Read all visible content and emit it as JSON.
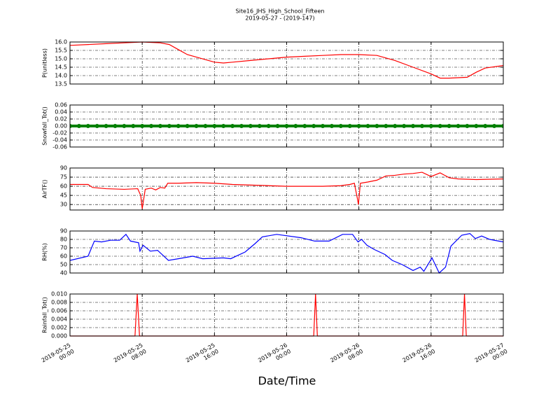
{
  "chart_data": [
    {
      "type": "line",
      "title": "Site16_JHS_High_School_Fifteen",
      "subtitle": "2019-05-27 - (2019-147)",
      "ylabel": "P(unitless)",
      "color": "#ff0000",
      "grid": true,
      "xlim": [
        "2019-05-25 00:00",
        "2019-05-27 00:00"
      ],
      "xticks": [
        "2019-05-25 00:00",
        "2019-05-25 08:00",
        "2019-05-25 16:00",
        "2019-05-26 00:00",
        "2019-05-26 08:00",
        "2019-05-26 16:00",
        "2019-05-27 00:00"
      ],
      "ylim": [
        13.5,
        16.0
      ],
      "yticks": [
        13.5,
        {
          "value": 14,
          "label": "14.0"
        },
        14.5,
        {
          "value": 15,
          "label": "15.0"
        },
        15.5,
        {
          "value": 16,
          "label": "16.0"
        }
      ],
      "x": [
        "2019-05-25 00:00",
        "2019-05-25 02:00",
        "2019-05-25 04:00",
        "2019-05-25 06:00",
        "2019-05-25 08:00",
        "2019-05-25 10:00",
        "2019-05-25 11:00",
        "2019-05-25 12:00",
        "2019-05-25 13:00",
        "2019-05-25 14:00",
        "2019-05-25 15:00",
        "2019-05-25 16:00",
        "2019-05-25 17:00",
        "2019-05-25 18:00",
        "2019-05-25 20:00",
        "2019-05-25 22:00",
        "2019-05-26 00:00",
        "2019-05-26 02:00",
        "2019-05-26 04:00",
        "2019-05-26 06:00",
        "2019-05-26 08:00",
        "2019-05-26 10:00",
        "2019-05-26 12:00",
        "2019-05-26 14:00",
        "2019-05-26 16:00",
        "2019-05-26 17:00",
        "2019-05-26 18:00",
        "2019-05-26 20:00",
        "2019-05-26 21:00",
        "2019-05-26 22:00",
        "2019-05-27 00:00"
      ],
      "values": [
        15.8,
        15.85,
        15.9,
        15.95,
        16.0,
        15.95,
        15.85,
        15.55,
        15.25,
        15.1,
        14.95,
        14.8,
        14.75,
        14.8,
        14.9,
        15.0,
        15.1,
        15.15,
        15.2,
        15.25,
        15.25,
        15.2,
        14.9,
        14.5,
        14.1,
        13.85,
        13.85,
        13.9,
        14.2,
        14.45,
        14.6
      ]
    },
    {
      "type": "scatter",
      "ylabel": "Snowfall_Tot()",
      "color": "#008000",
      "grid": true,
      "xlim": [
        "2019-05-25 00:00",
        "2019-05-27 00:00"
      ],
      "xticks": [
        "2019-05-25 00:00",
        "2019-05-25 08:00",
        "2019-05-25 16:00",
        "2019-05-26 00:00",
        "2019-05-26 08:00",
        "2019-05-26 16:00",
        "2019-05-27 00:00"
      ],
      "ylim": [
        -0.06,
        0.06
      ],
      "yticks": [
        -0.06,
        -0.04,
        -0.02,
        {
          "value": 0,
          "label": "0.00"
        },
        0.02,
        0.04,
        0.06
      ],
      "x": [
        "2019-05-25 00:00",
        "2019-05-25 01:00",
        "2019-05-25 02:00",
        "2019-05-25 03:00",
        "2019-05-25 04:00",
        "2019-05-25 05:00",
        "2019-05-25 06:00",
        "2019-05-25 07:00",
        "2019-05-25 08:00",
        "2019-05-25 09:00",
        "2019-05-25 10:00",
        "2019-05-25 11:00",
        "2019-05-25 12:00",
        "2019-05-25 13:00",
        "2019-05-25 14:00",
        "2019-05-25 15:00",
        "2019-05-25 16:00",
        "2019-05-25 17:00",
        "2019-05-25 18:00",
        "2019-05-25 19:00",
        "2019-05-25 20:00",
        "2019-05-25 21:00",
        "2019-05-25 22:00",
        "2019-05-25 23:00",
        "2019-05-26 00:00",
        "2019-05-26 01:00",
        "2019-05-26 02:00",
        "2019-05-26 03:00",
        "2019-05-26 04:00",
        "2019-05-26 05:00",
        "2019-05-26 06:00",
        "2019-05-26 07:00",
        "2019-05-26 08:00",
        "2019-05-26 09:00",
        "2019-05-26 10:00",
        "2019-05-26 11:00",
        "2019-05-26 12:00",
        "2019-05-26 13:00",
        "2019-05-26 14:00",
        "2019-05-26 15:00",
        "2019-05-26 16:00",
        "2019-05-26 17:00",
        "2019-05-26 18:00",
        "2019-05-26 19:00",
        "2019-05-26 20:00",
        "2019-05-26 21:00",
        "2019-05-26 22:00",
        "2019-05-26 23:00",
        "2019-05-27 00:00"
      ],
      "values": [
        0,
        0,
        0,
        0,
        0,
        0,
        0,
        0,
        0,
        0,
        0,
        0,
        0,
        0,
        0,
        0,
        0,
        0,
        0,
        0,
        0,
        0,
        0,
        0,
        0,
        0,
        0,
        0,
        0,
        0,
        0,
        0,
        0,
        0,
        0,
        0,
        0,
        0,
        0,
        0,
        0,
        0,
        0,
        0,
        0,
        0,
        0,
        0,
        0
      ]
    },
    {
      "type": "line",
      "ylabel": "AirTF()",
      "color": "#ff0000",
      "grid": true,
      "xlim": [
        "2019-05-25 00:00",
        "2019-05-27 00:00"
      ],
      "xticks": [
        "2019-05-25 00:00",
        "2019-05-25 08:00",
        "2019-05-25 16:00",
        "2019-05-26 00:00",
        "2019-05-26 08:00",
        "2019-05-26 16:00",
        "2019-05-27 00:00"
      ],
      "ylim": [
        21,
        90
      ],
      "yticks": [
        30,
        45,
        60,
        75,
        90
      ],
      "x": [
        "2019-05-25 00:00",
        "2019-05-25 02:00",
        "2019-05-25 02:30",
        "2019-05-25 04:00",
        "2019-05-25 06:00",
        "2019-05-25 07:30",
        "2019-05-25 07:50",
        "2019-05-25 08:00",
        "2019-05-25 08:20",
        "2019-05-25 09:00",
        "2019-05-25 09:30",
        "2019-05-25 10:00",
        "2019-05-25 10:30",
        "2019-05-25 10:50",
        "2019-05-25 12:00",
        "2019-05-25 14:00",
        "2019-05-25 16:00",
        "2019-05-25 18:00",
        "2019-05-25 20:00",
        "2019-05-25 22:00",
        "2019-05-26 00:00",
        "2019-05-26 02:00",
        "2019-05-26 04:00",
        "2019-05-26 06:00",
        "2019-05-26 07:00",
        "2019-05-26 07:30",
        "2019-05-26 07:50",
        "2019-05-26 07:57",
        "2019-05-26 08:10",
        "2019-05-26 09:00",
        "2019-05-26 10:00",
        "2019-05-26 11:00",
        "2019-05-26 12:00",
        "2019-05-26 13:00",
        "2019-05-26 14:00",
        "2019-05-26 15:00",
        "2019-05-26 16:00",
        "2019-05-26 17:00",
        "2019-05-26 18:00",
        "2019-05-26 19:00",
        "2019-05-26 21:00",
        "2019-05-27 00:00"
      ],
      "values": [
        63,
        63,
        58,
        56,
        55,
        56,
        45,
        23,
        55,
        57,
        54,
        58,
        57,
        65,
        65,
        66,
        65,
        63,
        62,
        61,
        60,
        60,
        60,
        61,
        63,
        65,
        40,
        30,
        65,
        67,
        70,
        77,
        78,
        80,
        81,
        83,
        76,
        82,
        74,
        72,
        71,
        72
      ]
    },
    {
      "type": "line",
      "ylabel": "RH(%)",
      "color": "#0000ff",
      "grid": true,
      "xlim": [
        "2019-05-25 00:00",
        "2019-05-27 00:00"
      ],
      "xticks": [
        "2019-05-25 00:00",
        "2019-05-25 08:00",
        "2019-05-25 16:00",
        "2019-05-26 00:00",
        "2019-05-26 08:00",
        "2019-05-26 16:00",
        "2019-05-27 00:00"
      ],
      "ylim": [
        40,
        90
      ],
      "yticks": [
        40,
        50,
        60,
        70,
        80,
        90
      ],
      "x": [
        "2019-05-25 00:00",
        "2019-05-25 02:00",
        "2019-05-25 02:42",
        "2019-05-25 03:30",
        "2019-05-25 04:30",
        "2019-05-25 05:30",
        "2019-05-25 06:12",
        "2019-05-25 06:42",
        "2019-05-25 07:36",
        "2019-05-25 07:45",
        "2019-05-25 08:06",
        "2019-05-25 08:54",
        "2019-05-25 09:42",
        "2019-05-25 10:54",
        "2019-05-25 12:00",
        "2019-05-25 13:36",
        "2019-05-25 14:42",
        "2019-05-25 17:00",
        "2019-05-25 17:48",
        "2019-05-25 19:24",
        "2019-05-25 20:30",
        "2019-05-25 21:18",
        "2019-05-25 22:54",
        "2019-05-26 01:36",
        "2019-05-26 03:06",
        "2019-05-26 04:42",
        "2019-05-26 06:12",
        "2019-05-26 07:18",
        "2019-05-26 07:54",
        "2019-05-26 08:18",
        "2019-05-26 08:54",
        "2019-05-26 09:42",
        "2019-05-26 10:54",
        "2019-05-26 11:42",
        "2019-05-26 12:48",
        "2019-05-26 14:00",
        "2019-05-26 14:48",
        "2019-05-26 15:12",
        "2019-05-26 16:06",
        "2019-05-26 16:54",
        "2019-05-26 17:36",
        "2019-05-26 18:12",
        "2019-05-26 19:24",
        "2019-05-26 20:18",
        "2019-05-26 20:54",
        "2019-05-26 21:36",
        "2019-05-26 22:30",
        "2019-05-27 00:00"
      ],
      "values": [
        55,
        60,
        78,
        77,
        79,
        79,
        86,
        78,
        76,
        66,
        73,
        66,
        67,
        55,
        57,
        60,
        57,
        58,
        57,
        65,
        75,
        83,
        86,
        82,
        78,
        78,
        86,
        86,
        77,
        80,
        73,
        68,
        62,
        55,
        50,
        43,
        47,
        42,
        58,
        40,
        47,
        72,
        85,
        87,
        81,
        84,
        80,
        77
      ]
    },
    {
      "type": "line",
      "ylabel": "Rainfall_Tot()",
      "xlabel": "Date/Time",
      "color": "#ff0000",
      "grid": true,
      "xlim": [
        "2019-05-25 00:00",
        "2019-05-27 00:00"
      ],
      "xticks": [
        "2019-05-25 00:00",
        "2019-05-25 08:00",
        "2019-05-25 16:00",
        "2019-05-26 00:00",
        "2019-05-26 08:00",
        "2019-05-26 16:00",
        "2019-05-27 00:00"
      ],
      "ylim": [
        0,
        0.01
      ],
      "yticks": [
        {
          "value": 0,
          "label": "0.000"
        },
        0.002,
        0.004,
        0.006,
        0.008,
        {
          "value": 0.01,
          "label": "0.010"
        }
      ],
      "x": [
        "2019-05-25 00:00",
        "2019-05-25 07:12",
        "2019-05-25 07:27",
        "2019-05-25 07:42",
        "2019-05-26 03:00",
        "2019-05-26 03:12",
        "2019-05-26 03:24",
        "2019-05-26 19:30",
        "2019-05-26 19:42",
        "2019-05-26 19:54",
        "2019-05-27 00:00"
      ],
      "values": [
        0,
        0,
        0.01,
        0,
        0,
        0.01,
        0,
        0,
        0.01,
        0,
        0
      ]
    }
  ]
}
